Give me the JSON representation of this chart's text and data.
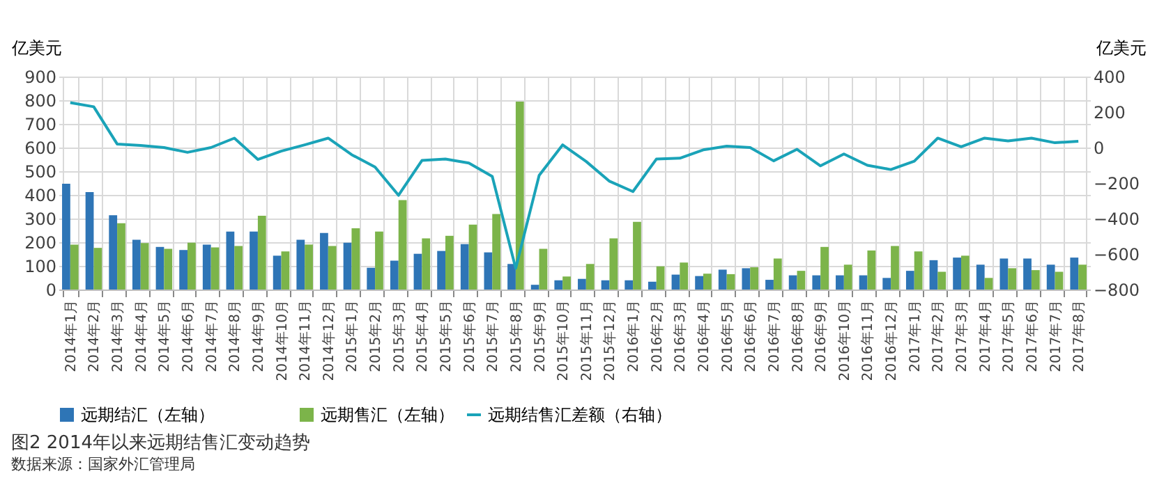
{
  "chart_data": {
    "type": "bar",
    "title": "图2 2014年以来远期结售汇变动趋势",
    "annotations": [
      "数据来源：国家外汇管理局"
    ],
    "ylabel": "亿美元",
    "y2label": "亿美元",
    "categories": [
      "2014年1月",
      "2014年2月",
      "2014年3月",
      "2014年4月",
      "2014年5月",
      "2014年6月",
      "2014年7月",
      "2014年8月",
      "2014年9月",
      "2014年10月",
      "2014年11月",
      "2014年12月",
      "2015年1月",
      "2015年2月",
      "2015年3月",
      "2015年4月",
      "2015年5月",
      "2015年6月",
      "2015年7月",
      "2015年8月",
      "2015年9月",
      "2015年10月",
      "2015年11月",
      "2015年12月",
      "2016年1月",
      "2016年2月",
      "2016年3月",
      "2016年4月",
      "2016年5月",
      "2016年6月",
      "2016年7月",
      "2016年8月",
      "2016年9月",
      "2016年10月",
      "2016年11月",
      "2016年12月",
      "2017年1月",
      "2017年2月",
      "2017年3月",
      "2017年4月",
      "2017年5月",
      "2017年6月",
      "2017年7月",
      "2017年8月"
    ],
    "series": [
      {
        "name": "远期结汇（左轴）",
        "color": "#2e75b6",
        "values": [
          447,
          412,
          314,
          210,
          180,
          167,
          190,
          245,
          245,
          143,
          210,
          239,
          198,
          92,
          122,
          151,
          163,
          192,
          157,
          108,
          20,
          39,
          45,
          39,
          39,
          33,
          63,
          57,
          84,
          90,
          41,
          60,
          60,
          60,
          60,
          49,
          79,
          124,
          135,
          105,
          131,
          131,
          105,
          135
        ]
      },
      {
        "name": "远期售汇（左轴）",
        "color": "#7cb44a",
        "values": [
          190,
          176,
          280,
          196,
          172,
          198,
          178,
          184,
          312,
          161,
          190,
          184,
          259,
          245,
          378,
          216,
          227,
          274,
          319,
          794,
          172,
          55,
          108,
          216,
          286,
          98,
          114,
          67,
          65,
          94,
          131,
          79,
          180,
          105,
          165,
          184,
          161,
          75,
          143,
          49,
          90,
          82,
          75,
          105
        ]
      },
      {
        "name": "远期结售汇差额（右轴）",
        "type": "line",
        "axis": "y2",
        "color": "#1aa3b8",
        "values": [
          253,
          230,
          20,
          12,
          0,
          -27,
          0,
          53,
          -67,
          -20,
          15,
          53,
          -40,
          -110,
          -269,
          -73,
          -65,
          -87,
          -163,
          -680,
          -157,
          15,
          -78,
          -190,
          -248,
          -65,
          -60,
          -13,
          8,
          0,
          -75,
          -10,
          -103,
          -36,
          -100,
          -124,
          -77,
          53,
          4,
          53,
          37,
          53,
          27,
          35
        ]
      }
    ],
    "ylim": [
      0,
      900
    ],
    "yticks": [
      0,
      100,
      200,
      300,
      400,
      500,
      600,
      700,
      800,
      900
    ],
    "y2lim": [
      -800,
      400
    ],
    "y2ticks": [
      -800,
      -600,
      -400,
      -200,
      0,
      200,
      400
    ],
    "grid": true,
    "legend": "bottom",
    "marker": "none",
    "line_style": "solid"
  }
}
